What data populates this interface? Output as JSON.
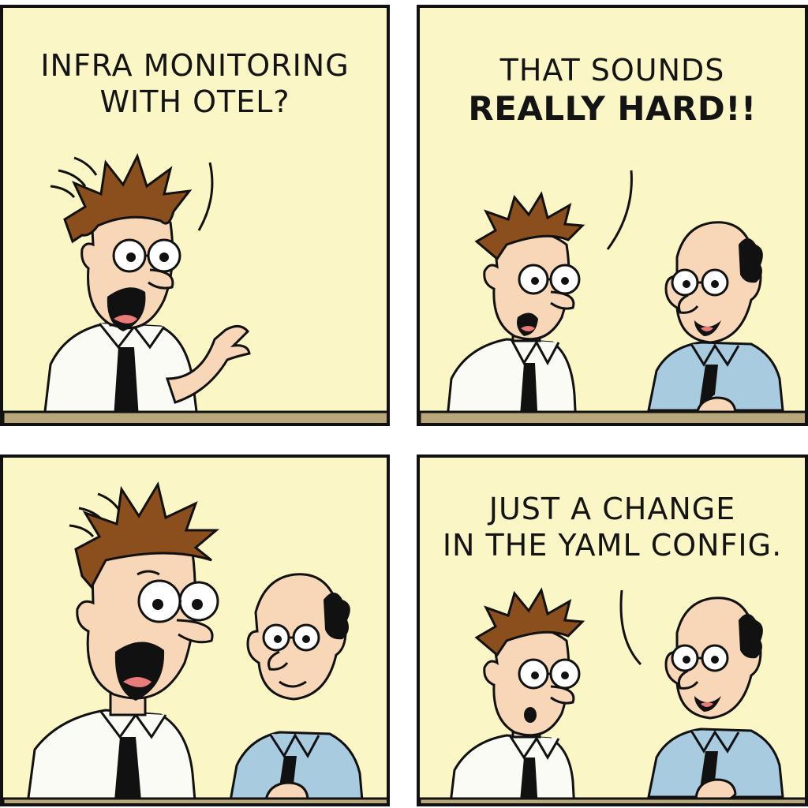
{
  "panels": [
    {
      "caption_lines": [
        "INFRA MONITORING",
        "WITH OTEL?"
      ]
    },
    {
      "caption_lines": [
        "THAT SOUNDS",
        "REALLY HARD!!"
      ]
    },
    {
      "caption_lines": []
    },
    {
      "caption_lines": [
        "JUST A CHANGE",
        "IN THE YAML CONFIG."
      ]
    }
  ],
  "colors": {
    "panel_bg": "#fbf6c6",
    "desk": "#b9a77c",
    "hair": "#8a4f1c",
    "skin": "#f7d7b8",
    "white_shirt": "#fbfbf5",
    "blue_shirt": "#a9cbe0",
    "tie": "#111111"
  },
  "icons": [
    "nervous-engineer-icon",
    "bald-manager-icon",
    "speech-tail-icon"
  ]
}
